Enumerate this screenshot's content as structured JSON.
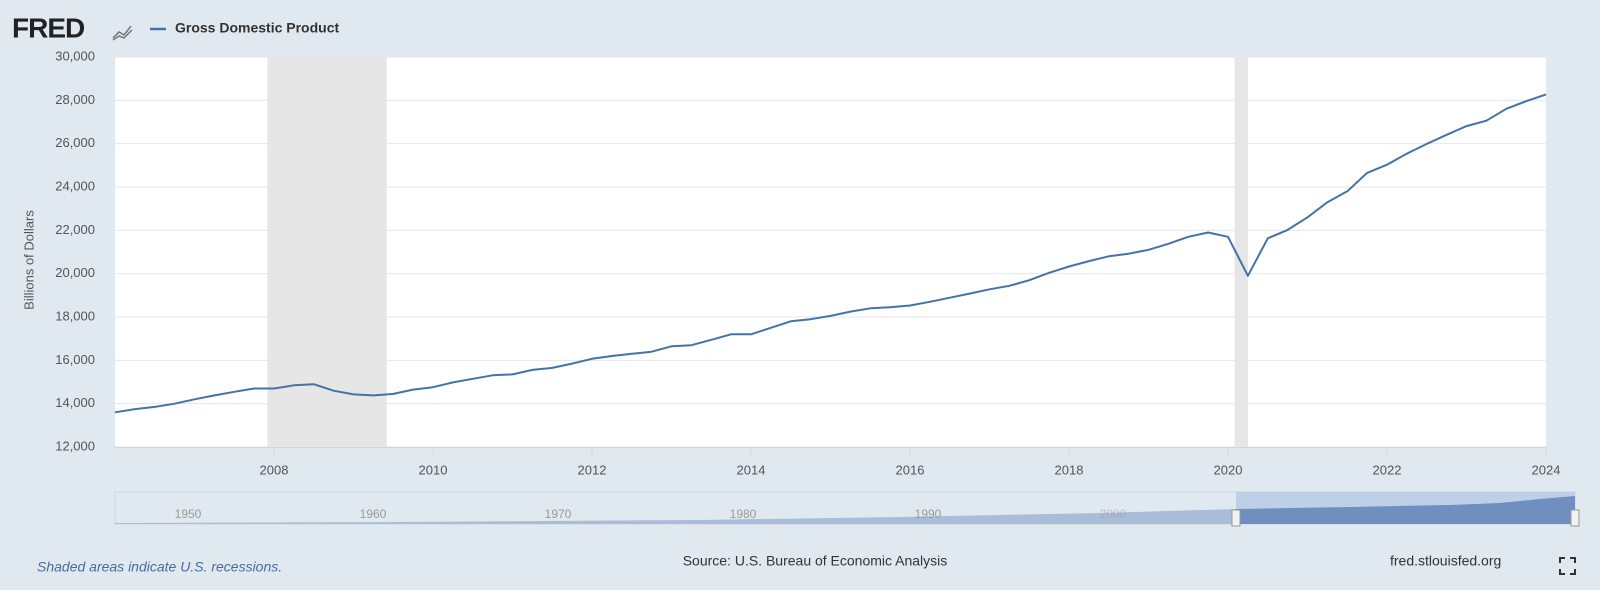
{
  "brand": "FRED",
  "chart_data": {
    "type": "line",
    "series": [
      {
        "name": "Gross Domestic Product",
        "color": "#4572a7",
        "values": [
          13600,
          13750,
          13850,
          14000,
          14200,
          14380,
          14550,
          14700,
          14700,
          14850,
          14900,
          14600,
          14430,
          14380,
          14450,
          14650,
          14760,
          14980,
          15150,
          15310,
          15350,
          15560,
          15650,
          15850,
          16070,
          16200,
          16300,
          16400,
          16650,
          16700,
          16950,
          17200,
          17200,
          17500,
          17800,
          17900,
          18050,
          18250,
          18400,
          18450,
          18530,
          18700,
          18890,
          19080,
          19280,
          19440,
          19700,
          20040,
          20330,
          20580,
          20800,
          20920,
          21100,
          21380,
          21700,
          21900,
          21700,
          19900,
          21630,
          22020,
          22600,
          23300,
          23800,
          24650,
          25030,
          25540,
          25990,
          26410,
          26810,
          27060,
          27610,
          27960,
          28270
        ]
      }
    ],
    "x": [
      2006,
      2006.25,
      2006.5,
      2006.75,
      2007,
      2007.25,
      2007.5,
      2007.75,
      2008,
      2008.25,
      2008.5,
      2008.75,
      2009,
      2009.25,
      2009.5,
      2009.75,
      2010,
      2010.25,
      2010.5,
      2010.75,
      2011,
      2011.25,
      2011.5,
      2011.75,
      2012,
      2012.25,
      2012.5,
      2012.75,
      2013,
      2013.25,
      2013.5,
      2013.75,
      2014,
      2014.25,
      2014.5,
      2014.75,
      2015,
      2015.25,
      2015.5,
      2015.75,
      2016,
      2016.25,
      2016.5,
      2016.75,
      2017,
      2017.25,
      2017.5,
      2017.75,
      2018,
      2018.25,
      2018.5,
      2018.75,
      2019,
      2019.25,
      2019.5,
      2019.75,
      2020,
      2020.25,
      2020.5,
      2020.75,
      2021,
      2021.25,
      2021.5,
      2021.75,
      2022,
      2022.25,
      2022.5,
      2022.75,
      2023,
      2023.25,
      2023.5,
      2023.75,
      2024
    ],
    "xlim": [
      2006,
      2024
    ],
    "xticks": [
      2008,
      2010,
      2012,
      2014,
      2016,
      2018,
      2020,
      2022,
      2024
    ],
    "ylim": [
      12000,
      30000
    ],
    "yticks": [
      {
        "value": 12000,
        "label": "12,000"
      },
      {
        "value": 14000,
        "label": "14,000"
      },
      {
        "value": 16000,
        "label": "16,000"
      },
      {
        "value": 18000,
        "label": "18,000"
      },
      {
        "value": 20000,
        "label": "20,000"
      },
      {
        "value": 22000,
        "label": "22,000"
      },
      {
        "value": 24000,
        "label": "24,000"
      },
      {
        "value": 26000,
        "label": "26,000"
      },
      {
        "value": 28000,
        "label": "28,000"
      },
      {
        "value": 30000,
        "label": "30,000"
      }
    ],
    "ylabel": "Billions of Dollars",
    "recessions": [
      [
        2007.917,
        2009.417
      ],
      [
        2020.083,
        2020.25
      ]
    ],
    "recession_color": "#e6e6e6",
    "grid": true,
    "navigator_ticks": [
      "1950",
      "1960",
      "1970",
      "1980",
      "1990",
      "2000"
    ]
  },
  "footer": {
    "note": "Shaded areas indicate U.S. recessions.",
    "source": "Source: U.S. Bureau of Economic Analysis",
    "site": "fred.stlouisfed.org"
  }
}
